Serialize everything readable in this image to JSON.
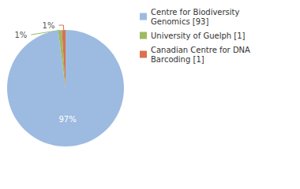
{
  "chart_data": {
    "type": "pie",
    "categories": [
      "Centre for Biodiversity Genomics [93]",
      "University of Guelph [1]",
      "Canadian Centre for DNA Barcoding [1]"
    ],
    "values": [
      97,
      1,
      1
    ],
    "value_labels": [
      "97%",
      "1%",
      "1%"
    ],
    "colors": [
      "#9dbbe1",
      "#9dbb61",
      "#d9714e"
    ],
    "data_labels": true,
    "legend": "right"
  }
}
